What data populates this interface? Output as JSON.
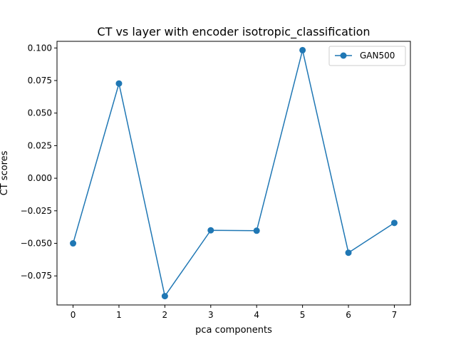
{
  "chart_data": {
    "type": "line",
    "title": "CT vs layer with encoder isotropic_classification",
    "xlabel": "pca components",
    "ylabel": "CT scores",
    "x": [
      0,
      1,
      2,
      3,
      4,
      5,
      6,
      7
    ],
    "series": [
      {
        "name": "GAN500",
        "color": "#1f77b4",
        "marker": "circle",
        "values": [
          -0.05,
          0.0727,
          -0.0905,
          -0.04,
          -0.0403,
          0.0983,
          -0.0572,
          -0.0343
        ]
      }
    ],
    "xticks": [
      "0",
      "1",
      "2",
      "3",
      "4",
      "5",
      "6",
      "7"
    ],
    "yticks": [
      "−0.075",
      "−0.050",
      "−0.025",
      "0.000",
      "0.025",
      "0.050",
      "0.075",
      "0.100"
    ],
    "xlim": [
      -0.35,
      7.35
    ],
    "ylim": [
      -0.0973,
      0.1051
    ],
    "grid": false,
    "legend_position": "top-right"
  }
}
